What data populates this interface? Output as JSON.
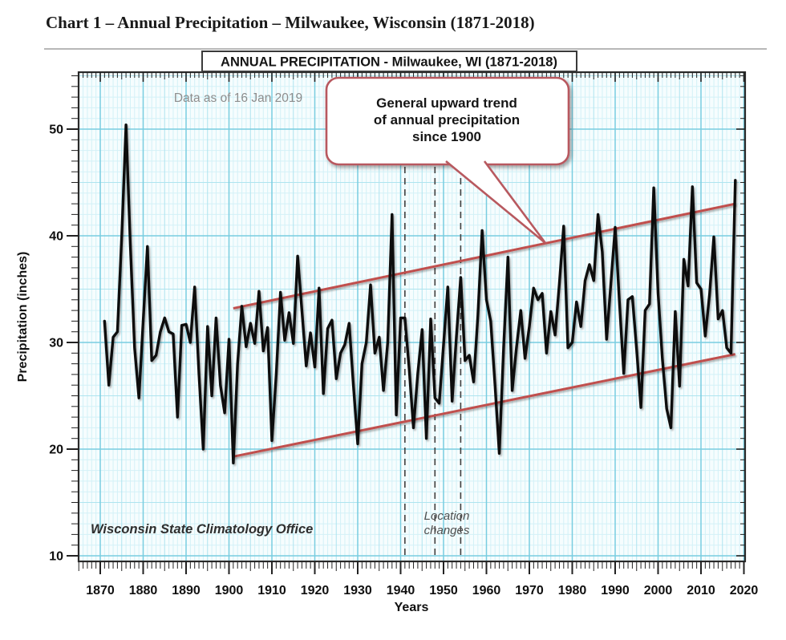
{
  "page": {
    "title": "Chart 1 – Annual Precipitation – Milwaukee, Wisconsin (1871-2018)"
  },
  "chart": {
    "header": "ANNUAL PRECIPITATION - Milwaukee, WI (1871-2018)",
    "data_note": "Data as of 16 Jan 2019",
    "callout_line1": "General upward trend",
    "callout_line2": "of annual precipitation",
    "callout_line3": "since 1900",
    "watermark": "Wisconsin State Climatology Office",
    "location_note_line1": "Location",
    "location_note_line2": "changes",
    "xlabel": "Years",
    "ylabel": "Precipitation (inches)",
    "colors": {
      "series": "#0c0c0c",
      "trend": "#c0504d",
      "callout_border": "#b8595f",
      "grid_fine": "#d3f1f7",
      "grid_mid": "#aee4ef",
      "grid_major": "#79cde0",
      "plot_bg": "#f6fdfe",
      "frame": "#2a2a2a",
      "dash_line": "#3f3f3f"
    }
  },
  "chart_data": {
    "type": "line",
    "title": "ANNUAL PRECIPITATION - Milwaukee, WI (1871-2018)",
    "xlabel": "Years",
    "ylabel": "Precipitation (inches)",
    "x_tick_labels": [
      1870,
      1880,
      1890,
      1900,
      1910,
      1920,
      1930,
      1940,
      1950,
      1960,
      1970,
      1980,
      1990,
      2000,
      2010,
      2020
    ],
    "y_tick_labels": [
      10,
      20,
      30,
      40,
      50
    ],
    "xlim": [
      1864.9,
      2020.3
    ],
    "ylim": [
      9.6,
      55.3
    ],
    "grid": "fine 1-unit grid, medium every 5, major every 10",
    "legend": "none",
    "start_year": 1871,
    "end_year": 2018,
    "values": [
      32.0,
      26.0,
      30.5,
      31.0,
      40.0,
      50.4,
      39.3,
      29.5,
      24.8,
      32.0,
      39.0,
      28.3,
      28.8,
      31.0,
      32.3,
      31.0,
      30.8,
      23.0,
      31.6,
      31.7,
      30.0,
      35.2,
      27.0,
      20.0,
      31.5,
      25.0,
      32.3,
      26.0,
      23.4,
      30.3,
      18.7,
      28.0,
      33.4,
      29.6,
      31.8,
      29.9,
      34.8,
      29.2,
      31.4,
      20.8,
      27.0,
      34.7,
      30.2,
      32.8,
      29.9,
      38.1,
      33.0,
      27.8,
      30.9,
      27.7,
      35.1,
      25.2,
      31.3,
      32.1,
      26.6,
      29.0,
      29.8,
      31.8,
      26.0,
      20.5,
      28.0,
      30.0,
      35.4,
      29.0,
      30.5,
      25.5,
      30.0,
      42.0,
      23.2,
      32.3,
      32.3,
      27.5,
      22.0,
      27.1,
      31.2,
      21.0,
      32.2,
      24.8,
      24.3,
      29.8,
      35.2,
      24.5,
      30.5,
      36.1,
      28.3,
      28.8,
      26.3,
      32.5,
      40.5,
      34.0,
      32.0,
      26.0,
      19.6,
      29.5,
      38.0,
      25.5,
      29.5,
      33.0,
      28.5,
      31.5,
      35.1,
      34.0,
      34.6,
      29.0,
      32.9,
      30.7,
      35.5,
      40.9,
      29.5,
      30.0,
      33.8,
      31.5,
      35.8,
      37.3,
      35.8,
      42.0,
      38.5,
      30.3,
      35.5,
      40.8,
      33.8,
      27.1,
      34.0,
      34.3,
      29.3,
      23.9,
      33.0,
      33.6,
      44.5,
      34.6,
      28.5,
      23.8,
      22.0,
      32.9,
      25.9,
      37.8,
      35.3,
      44.6,
      35.6,
      35.0,
      30.6,
      34.5,
      39.9,
      32.2,
      33.0,
      29.5,
      29.0,
      45.2
    ],
    "trend_lines": [
      {
        "name": "upper-envelope",
        "x1": 1901,
        "y1": 33.2,
        "x2": 2018,
        "y2": 43.0
      },
      {
        "name": "lower-envelope",
        "x1": 1901,
        "y1": 19.3,
        "x2": 2018,
        "y2": 28.9
      }
    ],
    "location_change_years": [
      1941,
      1948,
      1954
    ]
  }
}
